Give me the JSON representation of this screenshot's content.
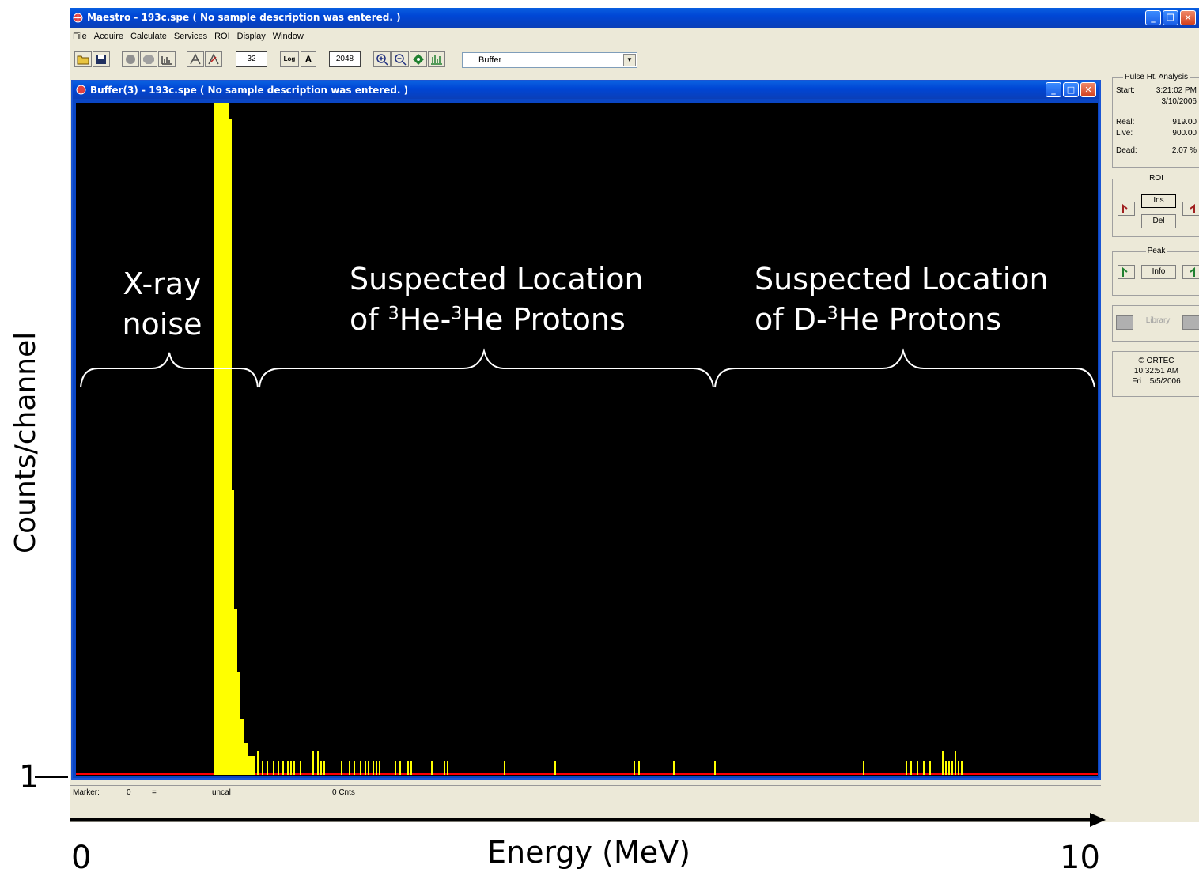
{
  "app": {
    "title": "Maestro - 193c.spe ( No sample description was entered. )",
    "menu": [
      "File",
      "Acquire",
      "Calculate",
      "Services",
      "ROI",
      "Display",
      "Window"
    ],
    "toolbar": {
      "count_box": "32",
      "log_label": "Log",
      "auto_label": "A",
      "channels_box": "2048",
      "buffer_select": "Buffer"
    }
  },
  "buffer_window": {
    "title": "Buffer(3) - 193c.spe ( No sample description was entered. )"
  },
  "status_bar": {
    "marker_label": "Marker:",
    "marker_value": "0",
    "equals": "=",
    "calibration": "uncal",
    "counts": "0  Cnts"
  },
  "side_panel": {
    "pha_title": "Pulse Ht. Analysis",
    "start_label": "Start:",
    "start_time": "3:21:02 PM",
    "start_date": "3/10/2006",
    "real_label": "Real:",
    "real_value": "919.00",
    "live_label": "Live:",
    "live_value": "900.00",
    "dead_label": "Dead:",
    "dead_value": "2.07  %",
    "roi_title": "ROI",
    "ins_label": "Ins",
    "del_label": "Del",
    "peak_title": "Peak",
    "info_label": "Info",
    "library_label": "Library",
    "ortec_label": "© ORTEC",
    "clock_time": "10:32:51 AM",
    "clock_day": "Fri",
    "clock_date": "5/5/2006"
  },
  "annotations": {
    "xray_line1": "X-ray",
    "xray_line2": "noise",
    "he3he3_line1": "Suspected Location",
    "he3he3_of": "of ",
    "he3he3_sup1": "3",
    "he3he3_mid": "He-",
    "he3he3_sup2": "3",
    "he3he3_end": "He Protons",
    "dhe3_line1": "Suspected Location",
    "dhe3_of": "of D-",
    "dhe3_sup": "3",
    "dhe3_end": "He Protons",
    "y_axis_label": "Counts/channel",
    "y_tick": "1",
    "x_axis_label": "Energy (MeV)",
    "x_min": "0",
    "x_max": "10"
  },
  "colors": {
    "spectrum": "#ffff00",
    "background": "#000000",
    "baseline": "#ff0000"
  }
}
